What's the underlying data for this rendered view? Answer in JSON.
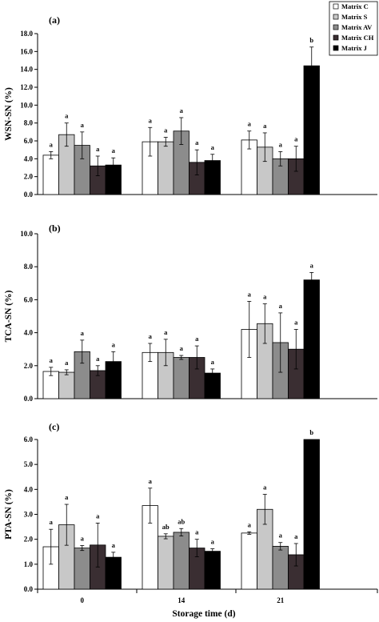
{
  "chart_data": {
    "type": "bar",
    "categories": [
      "0",
      "14",
      "21"
    ],
    "xlabel": "Storage time (d)",
    "legend": {
      "placement": "top-right",
      "entries": [
        "Matrix C",
        "Matrix S",
        "Matrix AV",
        "Matrix CH",
        "Matrix J"
      ]
    },
    "series_colors": [
      "#ffffff",
      "#c8c8c8",
      "#8c8c8c",
      "#3a2e32",
      "#000000"
    ],
    "panels": [
      {
        "label": "(a)",
        "ylabel": "WSN-SN (%)",
        "ylim": [
          0,
          18
        ],
        "yticks": [
          "0.0",
          "2.0",
          "4.0",
          "6.0",
          "8.0",
          "10.0",
          "12.0",
          "14.0",
          "16.0",
          "18.0"
        ],
        "series": [
          {
            "name": "Matrix C",
            "values": [
              4.4,
              5.9,
              6.1
            ],
            "errors": [
              0.4,
              1.6,
              1.0
            ],
            "letters": [
              "a",
              "a",
              "a"
            ]
          },
          {
            "name": "Matrix S",
            "values": [
              6.7,
              5.9,
              5.3
            ],
            "errors": [
              1.3,
              0.5,
              1.6
            ],
            "letters": [
              "a",
              "a",
              "a"
            ]
          },
          {
            "name": "Matrix AV",
            "values": [
              5.5,
              7.1,
              4.0
            ],
            "errors": [
              1.5,
              1.5,
              0.8
            ],
            "letters": [
              "a",
              "a",
              "a"
            ]
          },
          {
            "name": "Matrix CH",
            "values": [
              3.2,
              3.6,
              4.0
            ],
            "errors": [
              1.1,
              1.4,
              1.4
            ],
            "letters": [
              "a",
              "a",
              "a"
            ]
          },
          {
            "name": "Matrix J",
            "values": [
              3.3,
              3.8,
              14.4
            ],
            "errors": [
              0.8,
              0.7,
              2.1
            ],
            "letters": [
              "a",
              "a",
              "b"
            ]
          }
        ]
      },
      {
        "label": "(b)",
        "ylabel": "TCA-SN (%)",
        "ylim": [
          0,
          10
        ],
        "yticks": [
          "0.0",
          "2.0",
          "4.0",
          "6.0",
          "8.0",
          "10.0"
        ],
        "series": [
          {
            "name": "Matrix C",
            "values": [
              1.65,
              2.8,
              4.2
            ],
            "errors": [
              0.25,
              0.55,
              1.7
            ],
            "letters": [
              "a",
              "a",
              "a"
            ]
          },
          {
            "name": "Matrix S",
            "values": [
              1.6,
              2.8,
              4.55
            ],
            "errors": [
              0.15,
              0.8,
              1.2
            ],
            "letters": [
              "a",
              "a",
              "a"
            ]
          },
          {
            "name": "Matrix AV",
            "values": [
              2.85,
              2.5,
              3.4
            ],
            "errors": [
              0.7,
              0.12,
              1.8
            ],
            "letters": [
              "a",
              "a",
              "a"
            ]
          },
          {
            "name": "Matrix CH",
            "values": [
              1.7,
              2.5,
              3.0
            ],
            "errors": [
              0.3,
              0.7,
              1.2
            ],
            "letters": [
              "a",
              "a",
              "a"
            ]
          },
          {
            "name": "Matrix J",
            "values": [
              2.25,
              1.55,
              7.2
            ],
            "errors": [
              0.6,
              0.25,
              0.45
            ],
            "letters": [
              "a",
              "a",
              "a"
            ]
          }
        ]
      },
      {
        "label": "(c)",
        "ylabel": "PTA-SN (%)",
        "ylim": [
          0,
          6
        ],
        "yticks": [
          "0.0",
          "1.0",
          "2.0",
          "3.0",
          "4.0",
          "5.0",
          "6.0"
        ],
        "series": [
          {
            "name": "Matrix C",
            "values": [
              1.7,
              3.35,
              2.25
            ],
            "errors": [
              0.7,
              0.7,
              0.05
            ],
            "letters": [
              "a",
              "a",
              "a"
            ]
          },
          {
            "name": "Matrix S",
            "values": [
              2.58,
              2.12,
              3.2
            ],
            "errors": [
              0.82,
              0.1,
              0.6
            ],
            "letters": [
              "a",
              "ab",
              "a"
            ]
          },
          {
            "name": "Matrix AV",
            "values": [
              1.65,
              2.28,
              1.72
            ],
            "errors": [
              0.1,
              0.15,
              0.15
            ],
            "letters": [
              "a",
              "ab",
              "a"
            ]
          },
          {
            "name": "Matrix CH",
            "values": [
              1.77,
              1.65,
              1.38
            ],
            "errors": [
              0.88,
              0.35,
              0.45
            ],
            "letters": [
              "a",
              "a",
              "a"
            ]
          },
          {
            "name": "Matrix J",
            "values": [
              1.28,
              1.52,
              6.0
            ],
            "errors": [
              0.2,
              0.1,
              0.0
            ],
            "letters": [
              "a",
              "a",
              "b"
            ]
          }
        ]
      }
    ]
  }
}
